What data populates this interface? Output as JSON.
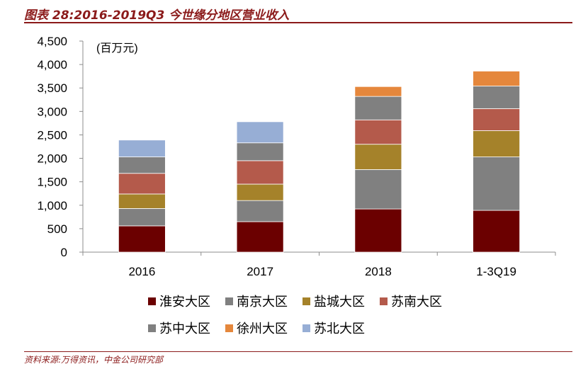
{
  "title": "图表 28:2016-2019Q3 今世缘分地区营业收入",
  "source": "资料来源:万得资讯，中金公司研究部",
  "chart_data": {
    "type": "bar",
    "stacked": true,
    "unit_label": "(百万元)",
    "categories": [
      "2016",
      "2017",
      "2018",
      "1-3Q19"
    ],
    "ylim": [
      0,
      4500
    ],
    "yticks": [
      0,
      500,
      1000,
      1500,
      2000,
      2500,
      3000,
      3500,
      4000,
      4500
    ],
    "ytick_labels": [
      "0",
      "500",
      "1,000",
      "1,500",
      "2,000",
      "2,500",
      "3,000",
      "3,500",
      "4,000",
      "4,500"
    ],
    "legend_position": "bottom",
    "series": [
      {
        "name": "淮安大区",
        "color": "#6b0000",
        "values": [
          560,
          650,
          920,
          890
        ]
      },
      {
        "name": "南京大区",
        "color": "#808080",
        "values": [
          370,
          450,
          840,
          1140
        ]
      },
      {
        "name": "盐城大区",
        "color": "#a5822a",
        "values": [
          310,
          350,
          540,
          560
        ]
      },
      {
        "name": "苏南大区",
        "color": "#b45a4b",
        "values": [
          440,
          500,
          520,
          470
        ]
      },
      {
        "name": "苏中大区",
        "color": "#808080",
        "values": [
          350,
          380,
          500,
          480
        ]
      },
      {
        "name": "徐州大区",
        "color": "#e5873c",
        "values": [
          0,
          0,
          210,
          320
        ]
      },
      {
        "name": "苏北大区",
        "color": "#97aed5",
        "values": [
          360,
          450,
          0,
          0
        ]
      }
    ]
  }
}
